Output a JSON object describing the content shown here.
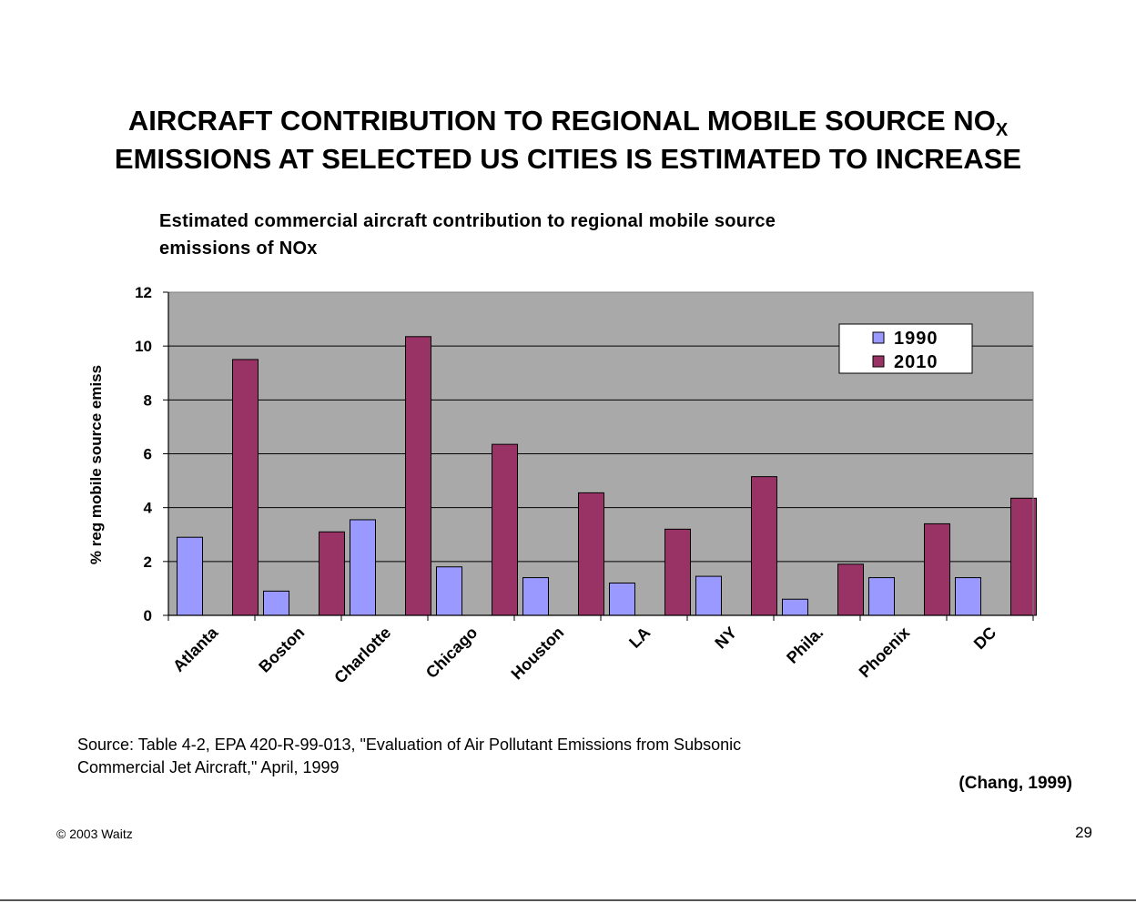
{
  "slide": {
    "title_line1": "AIRCRAFT CONTRIBUTION TO REGIONAL MOBILE SOURCE NO",
    "title_sub": "X",
    "title_line2": "EMISSIONS AT SELECTED US CITIES IS ESTIMATED TO INCREASE",
    "source_line1": "Source:  Table 4-2, EPA 420-R-99-013,  \"Evaluation of Air Pollutant Emissions from  Subsonic",
    "source_line2": "Commercial Jet Aircraft,\" April, 1999",
    "citation": "(Chang, 1999)",
    "copyright": "© 2003 Waitz",
    "page_number": "29"
  },
  "chart_data": {
    "type": "bar",
    "title_line1": "Estimated commercial aircraft contribution to regional mobile source",
    "title_line2": "emissions of NOx",
    "xlabel": "",
    "ylabel": "% reg mobile source emiss",
    "categories": [
      "Atlanta",
      "Boston",
      "Charlotte",
      "Chicago",
      "Houston",
      "LA",
      "NY",
      "Phila.",
      "Phoenix",
      "DC"
    ],
    "series": [
      {
        "name": "1990",
        "color": "#9999ff",
        "values": [
          2.9,
          0.9,
          3.55,
          1.8,
          1.4,
          1.2,
          1.45,
          0.6,
          1.4,
          1.4
        ]
      },
      {
        "name": "2010",
        "color": "#993366",
        "values": [
          9.5,
          3.1,
          10.35,
          6.35,
          4.55,
          3.2,
          5.15,
          1.9,
          3.4,
          4.35
        ]
      }
    ],
    "ylim": [
      0,
      12
    ],
    "yticks": [
      0,
      2,
      4,
      6,
      8,
      10,
      12
    ],
    "grid": true,
    "plot_background": "#a9a9a9",
    "legend_position": "top-right"
  }
}
